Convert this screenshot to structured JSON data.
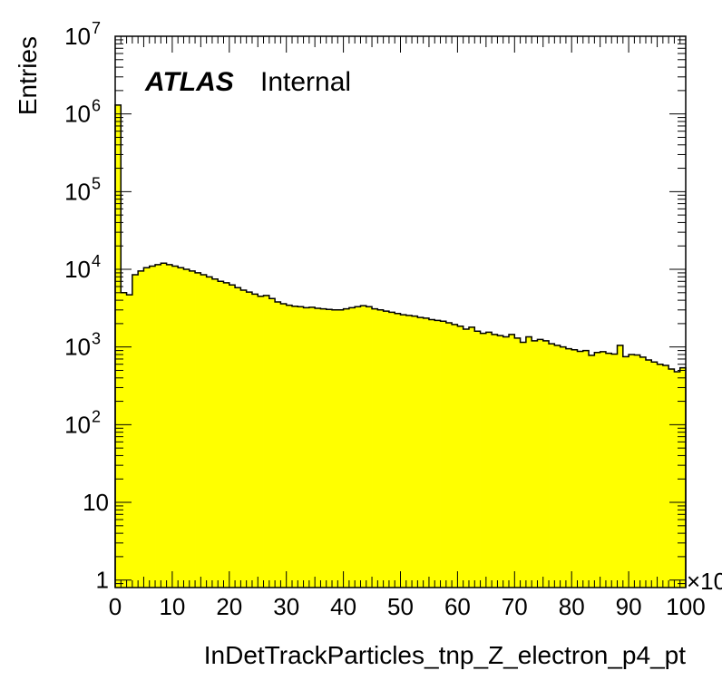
{
  "chart_data": {
    "type": "bar",
    "xlabel": "InDetTrackParticles_tnp_Z_electron_p4_pt",
    "ylabel": "Entries",
    "x_multiplier": "×10",
    "label_bold": "ATLAS",
    "label_text": "Internal",
    "log_y": true,
    "xlim": [
      0,
      100
    ],
    "ylim": [
      0.8,
      10000000
    ],
    "fill_color": "#ffff00",
    "line_color": "#000000",
    "x_ticks": [
      {
        "v": 0,
        "label": "0"
      },
      {
        "v": 10,
        "label": "10"
      },
      {
        "v": 20,
        "label": "20"
      },
      {
        "v": 30,
        "label": "30"
      },
      {
        "v": 40,
        "label": "40"
      },
      {
        "v": 50,
        "label": "50"
      },
      {
        "v": 60,
        "label": "60"
      },
      {
        "v": 70,
        "label": "70"
      },
      {
        "v": 80,
        "label": "80"
      },
      {
        "v": 90,
        "label": "90"
      },
      {
        "v": 100,
        "label": "100"
      }
    ],
    "y_ticks": [
      {
        "v": 1,
        "base": "1",
        "exp": ""
      },
      {
        "v": 10,
        "base": "10",
        "exp": ""
      },
      {
        "v": 100,
        "base": "10",
        "exp": "2"
      },
      {
        "v": 1000,
        "base": "10",
        "exp": "3"
      },
      {
        "v": 10000,
        "base": "10",
        "exp": "4"
      },
      {
        "v": 100000,
        "base": "10",
        "exp": "5"
      },
      {
        "v": 1000000,
        "base": "10",
        "exp": "6"
      },
      {
        "v": 10000000,
        "base": "10",
        "exp": "7"
      }
    ],
    "bin_width": 1,
    "values": [
      1300000,
      5000,
      4700,
      8500,
      9500,
      10500,
      11000,
      11500,
      12000,
      11500,
      11000,
      10500,
      10000,
      9500,
      9000,
      8500,
      8000,
      7500,
      7000,
      6700,
      6300,
      5800,
      5400,
      5100,
      4800,
      4500,
      4600,
      4200,
      3800,
      3600,
      3450,
      3350,
      3300,
      3200,
      3250,
      3150,
      3100,
      3050,
      3000,
      3000,
      3100,
      3200,
      3300,
      3400,
      3300,
      3100,
      3000,
      2900,
      2800,
      2700,
      2600,
      2550,
      2500,
      2400,
      2350,
      2250,
      2200,
      2150,
      2050,
      1950,
      1850,
      1700,
      1800,
      1600,
      1500,
      1550,
      1450,
      1400,
      1350,
      1450,
      1300,
      1150,
      1350,
      1200,
      1250,
      1200,
      1100,
      1050,
      1000,
      950,
      920,
      880,
      900,
      780,
      850,
      870,
      830,
      810,
      1050,
      750,
      800,
      790,
      740,
      680,
      640,
      600,
      580,
      520,
      480,
      540
    ]
  }
}
